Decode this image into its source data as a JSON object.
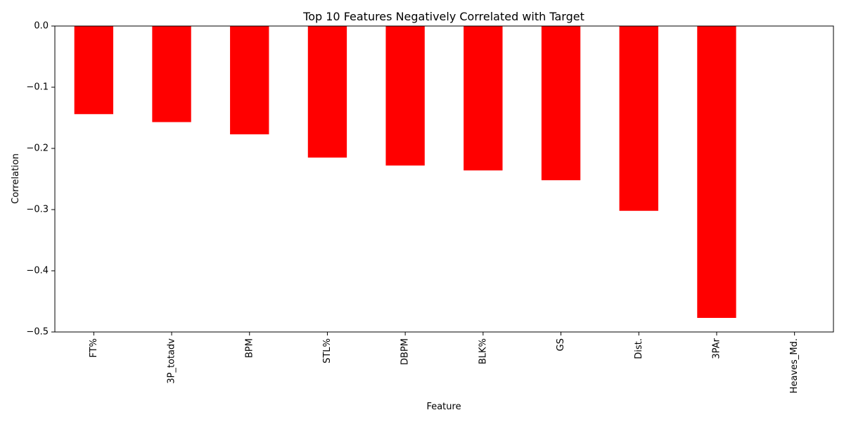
{
  "chart_data": {
    "type": "bar",
    "title": "Top 10 Features Negatively Correlated with Target",
    "xlabel": "Feature",
    "ylabel": "Correlation",
    "categories": [
      "FT%",
      "3P_totadv",
      "BPM",
      "STL%",
      "DBPM",
      "BLK%",
      "GS",
      "Dist.",
      "3PAr",
      "Heaves_Md."
    ],
    "values": [
      -0.144,
      -0.157,
      -0.177,
      -0.215,
      -0.228,
      -0.236,
      -0.252,
      -0.302,
      -0.477,
      0.0
    ],
    "ylim": [
      -0.5,
      0.0
    ],
    "yticks": [
      0.0,
      -0.1,
      -0.2,
      -0.3,
      -0.4,
      -0.5
    ],
    "ytick_labels": [
      "0.0",
      "−0.1",
      "−0.2",
      "−0.3",
      "−0.4",
      "−0.5"
    ],
    "bar_color": "#ff0000",
    "grid": false,
    "xtick_rotation": "vertical"
  }
}
